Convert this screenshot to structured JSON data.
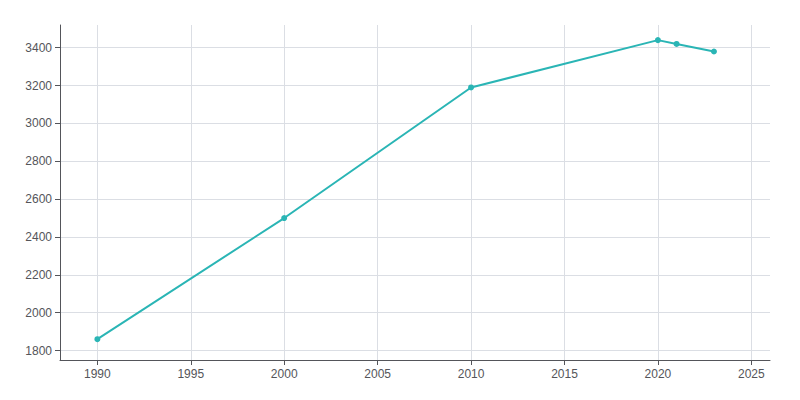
{
  "chart_data": {
    "type": "line",
    "x": [
      1990,
      2000,
      2010,
      2020,
      2021,
      2023
    ],
    "values": [
      1860,
      2500,
      3190,
      3440,
      3420,
      3380
    ],
    "color": "#2ab5b5",
    "marker": "circle",
    "xlim": [
      1988,
      2026
    ],
    "ylim": [
      1750,
      3520
    ],
    "xticks": [
      1990,
      1995,
      2000,
      2005,
      2010,
      2015,
      2020,
      2025
    ],
    "yticks": [
      1800,
      2000,
      2200,
      2400,
      2600,
      2800,
      3000,
      3200,
      3400
    ],
    "grid": true
  }
}
